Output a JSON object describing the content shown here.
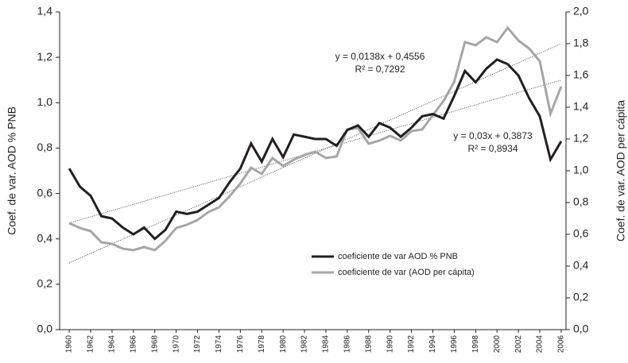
{
  "chart_data": {
    "type": "line",
    "y_label": "Coef. de var. AOD % PNB",
    "y2_label": "Coef. de var. AOD per cápita",
    "x": [
      1960,
      1961,
      1962,
      1963,
      1964,
      1965,
      1966,
      1967,
      1968,
      1969,
      1970,
      1971,
      1972,
      1973,
      1974,
      1975,
      1976,
      1977,
      1978,
      1979,
      1980,
      1981,
      1982,
      1983,
      1984,
      1985,
      1986,
      1987,
      1988,
      1989,
      1990,
      1991,
      1992,
      1993,
      1994,
      1995,
      1996,
      1997,
      1998,
      1999,
      2000,
      2001,
      2002,
      2003,
      2004,
      2005,
      2006
    ],
    "series": [
      {
        "name": "coeficiente de var AOD % PNB",
        "color": "#231f20",
        "axis": "y",
        "values": [
          0.71,
          0.63,
          0.59,
          0.5,
          0.49,
          0.45,
          0.42,
          0.45,
          0.4,
          0.44,
          0.52,
          0.51,
          0.52,
          0.55,
          0.58,
          0.65,
          0.71,
          0.82,
          0.74,
          0.84,
          0.76,
          0.86,
          0.85,
          0.84,
          0.84,
          0.81,
          0.88,
          0.9,
          0.85,
          0.91,
          0.89,
          0.85,
          0.89,
          0.94,
          0.95,
          0.93,
          1.03,
          1.14,
          1.09,
          1.15,
          1.19,
          1.17,
          1.12,
          1.02,
          0.94,
          0.75,
          0.83
        ]
      },
      {
        "name": "coeficiente de var (AOD per cápita)",
        "color": "#a6a6a6",
        "axis": "y2",
        "values": [
          0.67,
          0.64,
          0.62,
          0.55,
          0.54,
          0.51,
          0.5,
          0.52,
          0.5,
          0.56,
          0.64,
          0.66,
          0.69,
          0.74,
          0.77,
          0.84,
          0.92,
          1.02,
          0.98,
          1.08,
          1.03,
          1.07,
          1.1,
          1.12,
          1.08,
          1.09,
          1.26,
          1.27,
          1.17,
          1.19,
          1.22,
          1.19,
          1.25,
          1.26,
          1.35,
          1.44,
          1.56,
          1.81,
          1.79,
          1.84,
          1.81,
          1.9,
          1.82,
          1.77,
          1.69,
          1.36,
          1.53
        ]
      }
    ],
    "trendlines": [
      {
        "axis": "y",
        "x": [
          1960,
          2006
        ],
        "values": [
          0.47,
          1.1
        ],
        "equation": "y = 0,0138x + 0,4556",
        "r2": "R² = 0,7292"
      },
      {
        "axis": "y2",
        "x": [
          1960,
          2006
        ],
        "values": [
          0.42,
          1.8
        ],
        "equation": "y = 0,03x + 0,3873",
        "r2": "R² = 0,8934"
      }
    ],
    "xlim": [
      1959.1,
      2006.45
    ],
    "xticks": [
      1960,
      1962,
      1964,
      1966,
      1968,
      1970,
      1972,
      1974,
      1976,
      1978,
      1980,
      1982,
      1984,
      1986,
      1988,
      1990,
      1992,
      1994,
      1996,
      1998,
      2000,
      2002,
      2004,
      2006
    ],
    "ylim": [
      0,
      1.4
    ],
    "yticks": [
      {
        "value": 0,
        "label": "0,0"
      },
      {
        "value": 0.2,
        "label": "0,2"
      },
      {
        "value": 0.4,
        "label": "0,4"
      },
      {
        "value": 0.6,
        "label": "0,6"
      },
      {
        "value": 0.8,
        "label": "0,8"
      },
      {
        "value": 1.0,
        "label": "1,0"
      },
      {
        "value": 1.2,
        "label": "1,2"
      },
      {
        "value": 1.4,
        "label": "1,4"
      }
    ],
    "y2lim": [
      0,
      2.0
    ],
    "y2ticks": [
      {
        "value": 0,
        "label": "0,0"
      },
      {
        "value": 0.2,
        "label": "0,2"
      },
      {
        "value": 0.4,
        "label": "0,4"
      },
      {
        "value": 0.6,
        "label": "0,6"
      },
      {
        "value": 0.8,
        "label": "0,8"
      },
      {
        "value": 1.0,
        "label": "1,0"
      },
      {
        "value": 1.2,
        "label": "1,2"
      },
      {
        "value": 1.4,
        "label": "1,4"
      },
      {
        "value": 1.6,
        "label": "1,6"
      },
      {
        "value": 1.8,
        "label": "1,8"
      },
      {
        "value": 2.0,
        "label": "2,0"
      }
    ],
    "legend": "center-right"
  }
}
